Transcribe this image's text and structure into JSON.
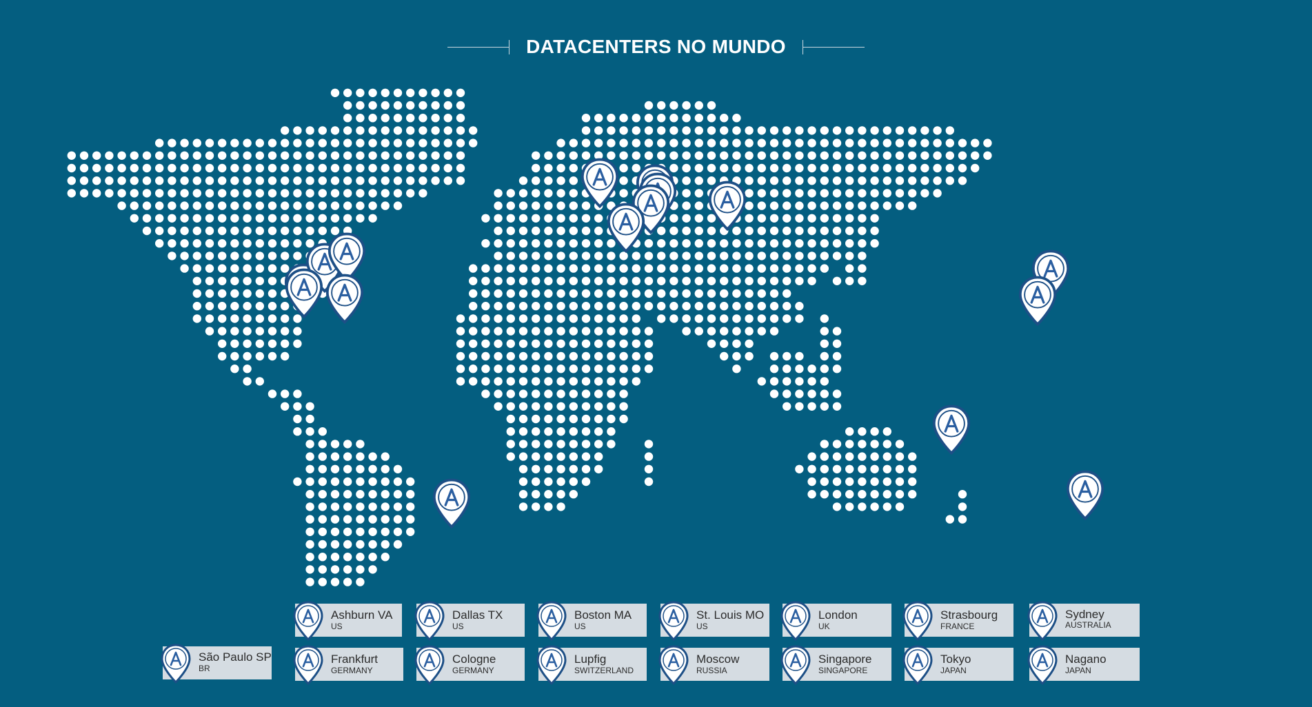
{
  "title": "DATACENTERS NO MUNDO",
  "icon": "acronis-a-map-pin-icon",
  "colors": {
    "background": "#045e80",
    "dots": "#ffffff",
    "pin_fill": "#ffffff",
    "pin_stroke": "#1d4f86",
    "pin_letter": "#2a5ea0",
    "legend_card": "#d5dce2"
  },
  "legend": [
    {
      "name": "Ashburn VA",
      "country": "US"
    },
    {
      "name": "Dallas TX",
      "country": "US"
    },
    {
      "name": "Boston MA",
      "country": "US"
    },
    {
      "name": "St. Louis MO",
      "country": "US"
    },
    {
      "name": "London",
      "country": "UK"
    },
    {
      "name": "Strasbourg",
      "country": "FRANCE"
    },
    {
      "name": "Sydney",
      "country": "AUSTRALIA"
    },
    {
      "name": "São Paulo SP",
      "country": "BR"
    },
    {
      "name": "Frankfurt",
      "country": "GERMANY"
    },
    {
      "name": "Cologne",
      "country": "GERMANY"
    },
    {
      "name": "Lupfig",
      "country": "SWITZERLAND"
    },
    {
      "name": "Moscow",
      "country": "RUSSIA"
    },
    {
      "name": "Singapore",
      "country": "SINGAPORE"
    },
    {
      "name": "Tokyo",
      "country": "JAPAN"
    },
    {
      "name": "Nagano",
      "country": "JAPAN"
    }
  ]
}
